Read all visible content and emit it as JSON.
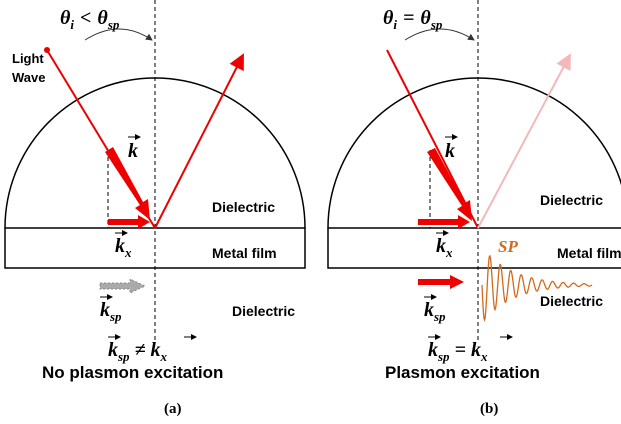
{
  "panel_a": {
    "angle": [
      "θ",
      "i",
      "<",
      "θ",
      "sp"
    ],
    "source": [
      "Light",
      "Wave"
    ],
    "k": "k",
    "kx": [
      "k",
      "x"
    ],
    "upper_medium": "Dielectric",
    "film": "Metal film",
    "ksp": [
      "k",
      "sp"
    ],
    "lower_medium": "Dielectric",
    "relation": [
      "k",
      "sp",
      "≠",
      "k",
      "x"
    ],
    "result": "No plasmon excitation",
    "caption": "(a)"
  },
  "panel_b": {
    "angle": [
      "θ",
      "i",
      "=",
      "θ",
      "sp"
    ],
    "k": "k",
    "kx": [
      "k",
      "x"
    ],
    "upper_medium": "Dielectric",
    "film": "Metal film",
    "sp_label": "SP",
    "ksp": [
      "k",
      "sp"
    ],
    "lower_medium": "Dielectric",
    "relation": [
      "k",
      "sp",
      "=",
      "k",
      "x"
    ],
    "result": "Plasmon excitation",
    "caption": "(b)"
  }
}
